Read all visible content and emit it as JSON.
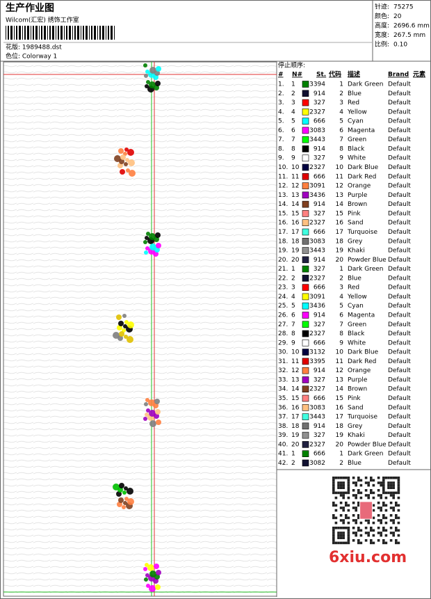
{
  "header": {
    "title": "生产作业图",
    "subtitle": "Wilcom(汇宏) 绣饰工作室",
    "design": "花版: 1989488.dst",
    "colorway": "色位: Colorway 1"
  },
  "info": [
    {
      "label": "针迹:",
      "value": "75275"
    },
    {
      "label": "颜色:",
      "value": "20"
    },
    {
      "label": "高度:",
      "value": "2696.6 mm"
    },
    {
      "label": "宽度:",
      "value": "267.5 mm"
    },
    {
      "label": "比例:",
      "value": "0.10"
    }
  ],
  "table": {
    "title": "停止顺序:",
    "columns": [
      "#",
      "N#",
      "St.",
      "代码",
      "描述",
      "Brand",
      "元素"
    ],
    "rows": [
      [
        "1.",
        "1",
        "#008000",
        "3394",
        "1",
        "Dark Green",
        "Default"
      ],
      [
        "2.",
        "2",
        "#101030",
        "914",
        "2",
        "Blue",
        "Default"
      ],
      [
        "3.",
        "3",
        "#ff0000",
        "327",
        "3",
        "Red",
        "Default"
      ],
      [
        "4.",
        "4",
        "#ffff00",
        "2327",
        "4",
        "Yellow",
        "Default"
      ],
      [
        "5.",
        "5",
        "#00ffff",
        "666",
        "5",
        "Cyan",
        "Default"
      ],
      [
        "6.",
        "6",
        "#ff00ff",
        "3083",
        "6",
        "Magenta",
        "Default"
      ],
      [
        "7.",
        "7",
        "#00ff00",
        "3443",
        "7",
        "Green",
        "Default"
      ],
      [
        "8.",
        "8",
        "#000000",
        "914",
        "8",
        "Black",
        "Default"
      ],
      [
        "9.",
        "9",
        "#ffffff",
        "327",
        "9",
        "White",
        "Default"
      ],
      [
        "10.",
        "10",
        "#000040",
        "2327",
        "10",
        "Dark Blue",
        "Default"
      ],
      [
        "11.",
        "11",
        "#e00000",
        "666",
        "11",
        "Dark Red",
        "Default"
      ],
      [
        "12.",
        "12",
        "#ff8040",
        "3091",
        "12",
        "Orange",
        "Default"
      ],
      [
        "13.",
        "13",
        "#a000c0",
        "3436",
        "13",
        "Purple",
        "Default"
      ],
      [
        "14.",
        "14",
        "#804020",
        "914",
        "14",
        "Brown",
        "Default"
      ],
      [
        "15.",
        "15",
        "#ff8080",
        "327",
        "15",
        "Pink",
        "Default"
      ],
      [
        "16.",
        "16",
        "#ffc080",
        "2327",
        "16",
        "Sand",
        "Default"
      ],
      [
        "17.",
        "17",
        "#40ffe0",
        "666",
        "17",
        "Turquoise",
        "Default"
      ],
      [
        "18.",
        "18",
        "#707070",
        "3083",
        "18",
        "Grey",
        "Default"
      ],
      [
        "19.",
        "19",
        "#909090",
        "3443",
        "19",
        "Khaki",
        "Default"
      ],
      [
        "20.",
        "20",
        "#202040",
        "914",
        "20",
        "Powder Blue",
        "Default"
      ],
      [
        "21.",
        "1",
        "#008000",
        "327",
        "1",
        "Dark Green",
        "Default"
      ],
      [
        "22.",
        "2",
        "#101030",
        "2327",
        "2",
        "Blue",
        "Default"
      ],
      [
        "23.",
        "3",
        "#ff0000",
        "666",
        "3",
        "Red",
        "Default"
      ],
      [
        "24.",
        "4",
        "#ffff00",
        "3091",
        "4",
        "Yellow",
        "Default"
      ],
      [
        "25.",
        "5",
        "#00ffff",
        "3436",
        "5",
        "Cyan",
        "Default"
      ],
      [
        "26.",
        "6",
        "#ff00ff",
        "914",
        "6",
        "Magenta",
        "Default"
      ],
      [
        "27.",
        "7",
        "#00ff00",
        "327",
        "7",
        "Green",
        "Default"
      ],
      [
        "28.",
        "8",
        "#000000",
        "2327",
        "8",
        "Black",
        "Default"
      ],
      [
        "29.",
        "9",
        "#ffffff",
        "666",
        "9",
        "White",
        "Default"
      ],
      [
        "30.",
        "10",
        "#000040",
        "3132",
        "10",
        "Dark Blue",
        "Default"
      ],
      [
        "31.",
        "11",
        "#e00000",
        "3395",
        "11",
        "Dark Red",
        "Default"
      ],
      [
        "32.",
        "12",
        "#ff8040",
        "914",
        "12",
        "Orange",
        "Default"
      ],
      [
        "33.",
        "13",
        "#a000c0",
        "327",
        "13",
        "Purple",
        "Default"
      ],
      [
        "34.",
        "14",
        "#804020",
        "2327",
        "14",
        "Brown",
        "Default"
      ],
      [
        "35.",
        "15",
        "#ff8080",
        "666",
        "15",
        "Pink",
        "Default"
      ],
      [
        "36.",
        "16",
        "#ffc080",
        "3083",
        "16",
        "Sand",
        "Default"
      ],
      [
        "37.",
        "17",
        "#40ffe0",
        "3443",
        "17",
        "Turquoise",
        "Default"
      ],
      [
        "38.",
        "18",
        "#707070",
        "914",
        "18",
        "Grey",
        "Default"
      ],
      [
        "39.",
        "19",
        "#909090",
        "327",
        "19",
        "Khaki",
        "Default"
      ],
      [
        "40.",
        "20",
        "#202040",
        "2327",
        "20",
        "Powder Blue",
        "Default"
      ],
      [
        "41.",
        "1",
        "#008000",
        "666",
        "1",
        "Dark Green",
        "Default"
      ],
      [
        "42.",
        "2",
        "#101030",
        "3082",
        "2",
        "Blue",
        "Default"
      ]
    ]
  },
  "watermark": "6xiu.com"
}
